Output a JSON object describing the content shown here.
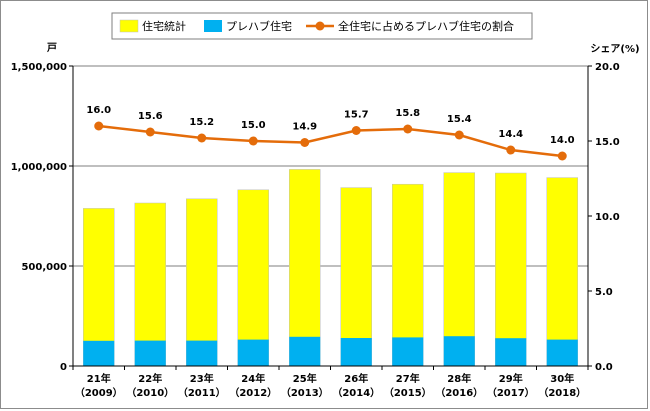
{
  "chart_data": {
    "type": "bar+line",
    "categories": [
      {
        "line1": "21年",
        "line2": "（2009）"
      },
      {
        "line1": "22年",
        "line2": "（2010）"
      },
      {
        "line1": "23年",
        "line2": "（2011）"
      },
      {
        "line1": "24年",
        "line2": "（2012）"
      },
      {
        "line1": "25年",
        "line2": "（2013）"
      },
      {
        "line1": "26年",
        "line2": "（2014）"
      },
      {
        "line1": "27年",
        "line2": "（2015）"
      },
      {
        "line1": "28年",
        "line2": "（2016）"
      },
      {
        "line1": "29年",
        "line2": "（2017）"
      },
      {
        "line1": "30年",
        "line2": "（2018）"
      }
    ],
    "series": [
      {
        "name": "住宅統計",
        "kind": "bar",
        "axis": "left",
        "color": "#ffff00",
        "values": [
          788000,
          815000,
          836000,
          881000,
          983000,
          892000,
          909000,
          967000,
          965000,
          942000
        ]
      },
      {
        "name": "プレハブ住宅",
        "kind": "bar",
        "axis": "left",
        "color": "#00b0f0",
        "values": [
          126000,
          127000,
          127000,
          132000,
          146000,
          140000,
          143000,
          149000,
          139000,
          132000
        ]
      },
      {
        "name": "全住宅に占めるプレハブ住宅の割合",
        "kind": "line",
        "axis": "right",
        "color": "#e46c0a",
        "values": [
          16.0,
          15.6,
          15.2,
          15.0,
          14.9,
          15.7,
          15.8,
          15.4,
          14.4,
          14.0
        ],
        "labels": [
          "16.0",
          "15.6",
          "15.2",
          "15.0",
          "14.9",
          "15.7",
          "15.8",
          "15.4",
          "14.4",
          "14.0"
        ]
      }
    ],
    "y_left": {
      "unit_label": "戸",
      "min": 0,
      "max": 1500000,
      "ticks": [
        {
          "v": 0,
          "t": "0"
        },
        {
          "v": 500000,
          "t": "500,000"
        },
        {
          "v": 1000000,
          "t": "1,000,000"
        },
        {
          "v": 1500000,
          "t": "1,500,000"
        }
      ]
    },
    "y_right": {
      "unit_label": "シェア(%)",
      "min": 0,
      "max": 20,
      "ticks": [
        {
          "v": 0,
          "t": "0.0"
        },
        {
          "v": 5,
          "t": "5.0"
        },
        {
          "v": 10,
          "t": "10.0"
        },
        {
          "v": 15,
          "t": "15.0"
        },
        {
          "v": 20,
          "t": "20.0"
        }
      ]
    },
    "grid": "horizontal",
    "legend_position": "top"
  },
  "colors": {
    "line": "#e46c0a",
    "yellow": "#ffff00",
    "blue": "#00b0f0",
    "grid": "#7f7f7f",
    "axis": "#000000"
  }
}
